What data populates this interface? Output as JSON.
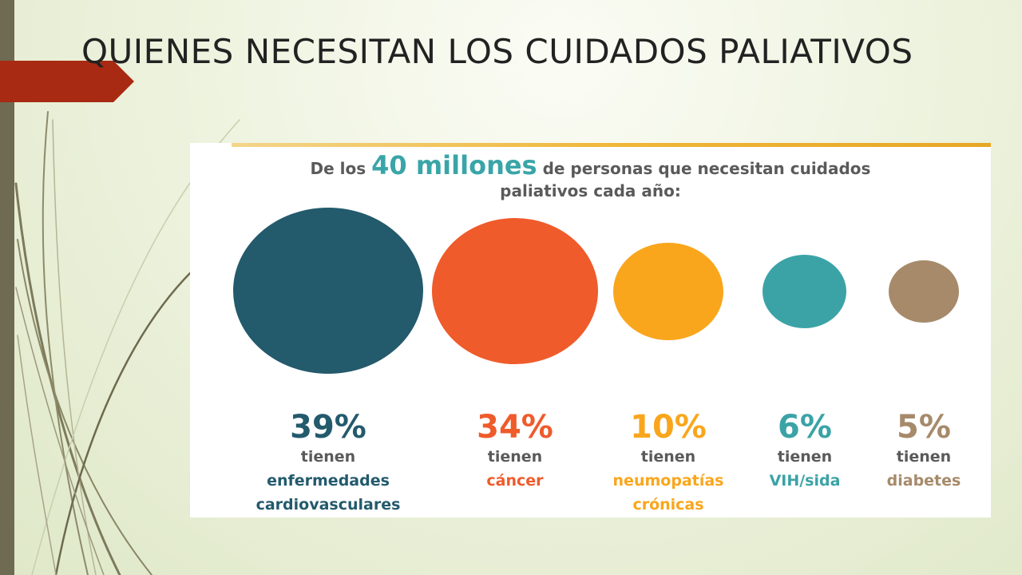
{
  "slide": {
    "title": "QUIENES NECESITAN LOS CUIDADOS PALIATIVOS"
  },
  "infographic": {
    "headline": {
      "prefix": "De los",
      "emphasis": "40 millones",
      "suffix_line1": "de personas que necesitan cuidados",
      "line2": "paliativos cada año:"
    },
    "stats": [
      {
        "value": 39,
        "percent": "39%",
        "verb": "tienen",
        "desc_line1": "enfermedades",
        "desc_line2": "cardiovasculares",
        "color": "#235a6c",
        "desc_color": "#235a6c"
      },
      {
        "value": 34,
        "percent": "34%",
        "verb": "tienen",
        "desc_line1": "cáncer",
        "desc_line2": "",
        "color": "#ef5b2b",
        "desc_color": "#ef5b2b"
      },
      {
        "value": 10,
        "percent": "10%",
        "verb": "tienen",
        "desc_line1": "neumopatías",
        "desc_line2": "crónicas",
        "color": "#f9a61c",
        "desc_color": "#f9a61c"
      },
      {
        "value": 6,
        "percent": "6%",
        "verb": "tienen",
        "desc_line1": "VIH/sida",
        "desc_line2": "",
        "color": "#3ba3a6",
        "desc_color": "#3ba3a6"
      },
      {
        "value": 5,
        "percent": "5%",
        "verb": "tienen",
        "desc_line1": "diabetes",
        "desc_line2": "",
        "color": "#a68a6a",
        "desc_color": "#a68a6a"
      }
    ],
    "verb_color": "#5a5a5a"
  },
  "theme": {
    "accent_arrow": "#a82a12",
    "left_bar": "#6f6a52",
    "headline_emphasis": "#3aa5a8"
  }
}
